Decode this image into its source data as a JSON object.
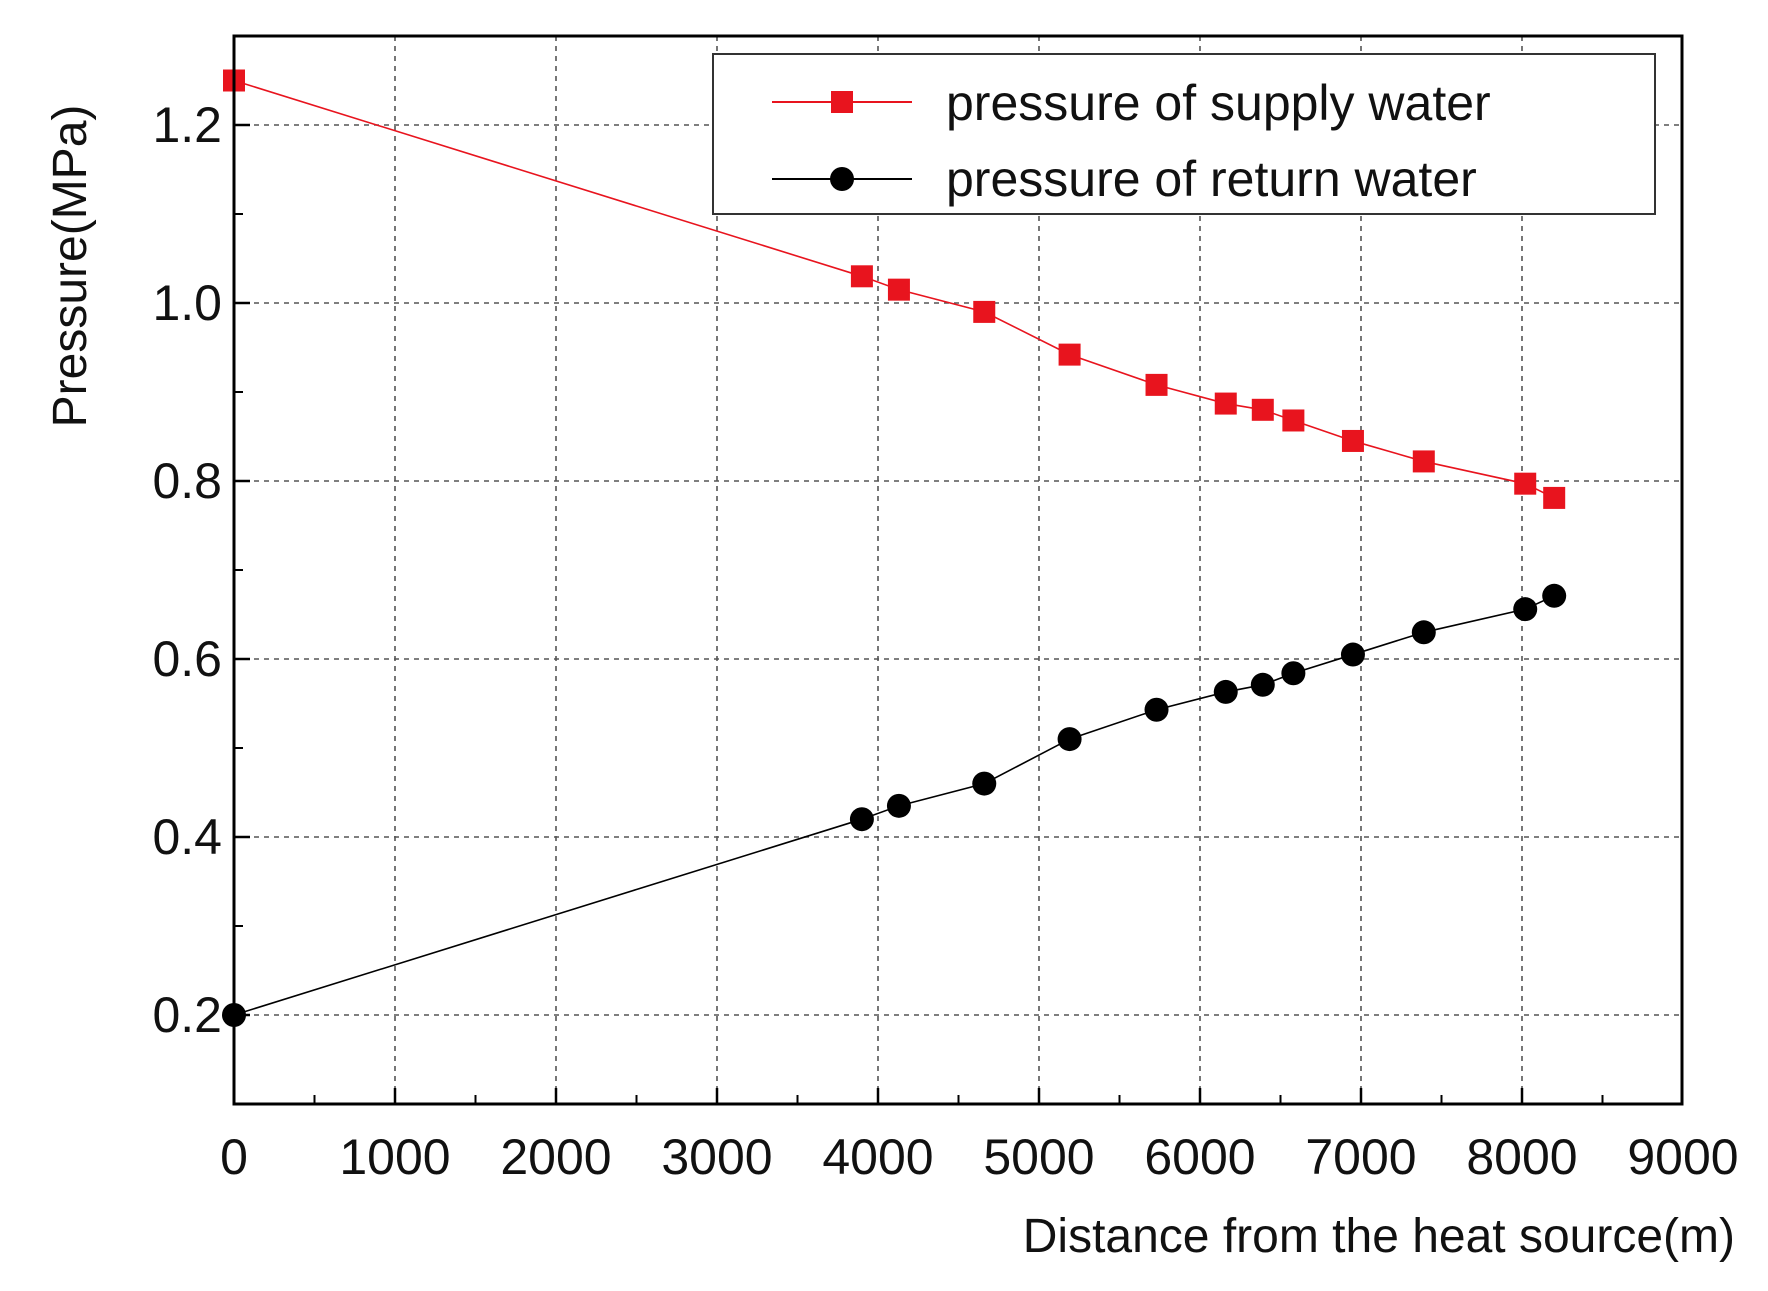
{
  "chart_data": {
    "type": "line",
    "title": "",
    "xlabel": "Distance from the heat source(m)",
    "ylabel": "Pressure(MPa)",
    "xlim": [
      0,
      9000
    ],
    "ylim": [
      0.1,
      1.3
    ],
    "x_ticks": [
      0,
      1000,
      2000,
      3000,
      4000,
      5000,
      6000,
      7000,
      8000,
      9000
    ],
    "x_tick_labels": [
      "0",
      "1000",
      "2000",
      "3000",
      "4000",
      "5000",
      "6000",
      "7000",
      "8000",
      "9000"
    ],
    "y_ticks": [
      0.2,
      0.4,
      0.6,
      0.8,
      1.0,
      1.2
    ],
    "y_tick_labels": [
      "0.2",
      "0.4",
      "0.6",
      "0.8",
      "1.0",
      "1.2"
    ],
    "grid": true,
    "legend_position": "top-right",
    "series": [
      {
        "name": "pressure of supply water",
        "color": "#e8141e",
        "marker": "square",
        "x": [
          0,
          3900,
          4130,
          4660,
          5190,
          5730,
          6160,
          6390,
          6580,
          6950,
          7390,
          8020,
          8200
        ],
        "y": [
          1.25,
          1.03,
          1.015,
          0.99,
          0.942,
          0.908,
          0.887,
          0.88,
          0.868,
          0.845,
          0.822,
          0.797,
          0.781
        ]
      },
      {
        "name": "pressure of return water",
        "color": "#000000",
        "marker": "circle",
        "x": [
          0,
          3900,
          4130,
          4660,
          5190,
          5730,
          6160,
          6390,
          6580,
          6950,
          7390,
          8020,
          8200
        ],
        "y": [
          0.2,
          0.42,
          0.435,
          0.46,
          0.51,
          0.543,
          0.563,
          0.571,
          0.584,
          0.605,
          0.63,
          0.656,
          0.671
        ]
      }
    ]
  }
}
